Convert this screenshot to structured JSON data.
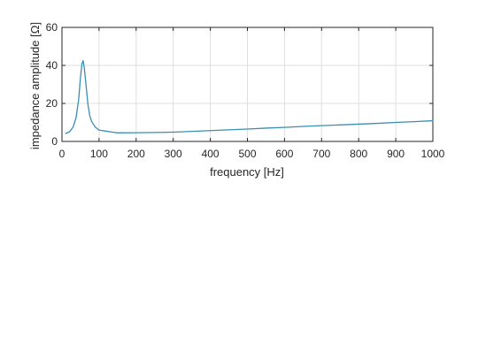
{
  "chart_data": {
    "type": "line",
    "title": "",
    "xlabel": "frequency [Hz]",
    "ylabel": "impedance amplitude [Ω]",
    "xlim": [
      0,
      1000
    ],
    "ylim": [
      0,
      60
    ],
    "xticks": [
      0,
      100,
      200,
      300,
      400,
      500,
      600,
      700,
      800,
      900,
      1000
    ],
    "yticks": [
      0,
      20,
      40,
      60
    ],
    "grid": true,
    "colors": {
      "series": "#3a8fb0",
      "axis": "#262626",
      "grid": "#dfdfdf"
    },
    "series": [
      {
        "x": [
          10,
          20,
          30,
          38,
          45,
          50,
          54,
          57,
          60,
          65,
          70,
          75,
          80,
          90,
          100,
          125,
          150,
          200,
          250,
          300,
          350,
          400,
          450,
          500,
          550,
          600,
          650,
          700,
          750,
          800,
          850,
          900,
          950,
          1000
        ],
        "values": [
          4.2,
          5.0,
          7.5,
          12.5,
          22.0,
          34.0,
          41.0,
          42.5,
          39.0,
          29.5,
          19.5,
          13.5,
          10.5,
          7.5,
          6.0,
          5.2,
          4.5,
          4.6,
          4.7,
          4.9,
          5.3,
          5.7,
          6.1,
          6.5,
          7.0,
          7.4,
          7.9,
          8.3,
          8.7,
          9.1,
          9.5,
          10.0,
          10.4,
          10.9
        ]
      }
    ]
  }
}
